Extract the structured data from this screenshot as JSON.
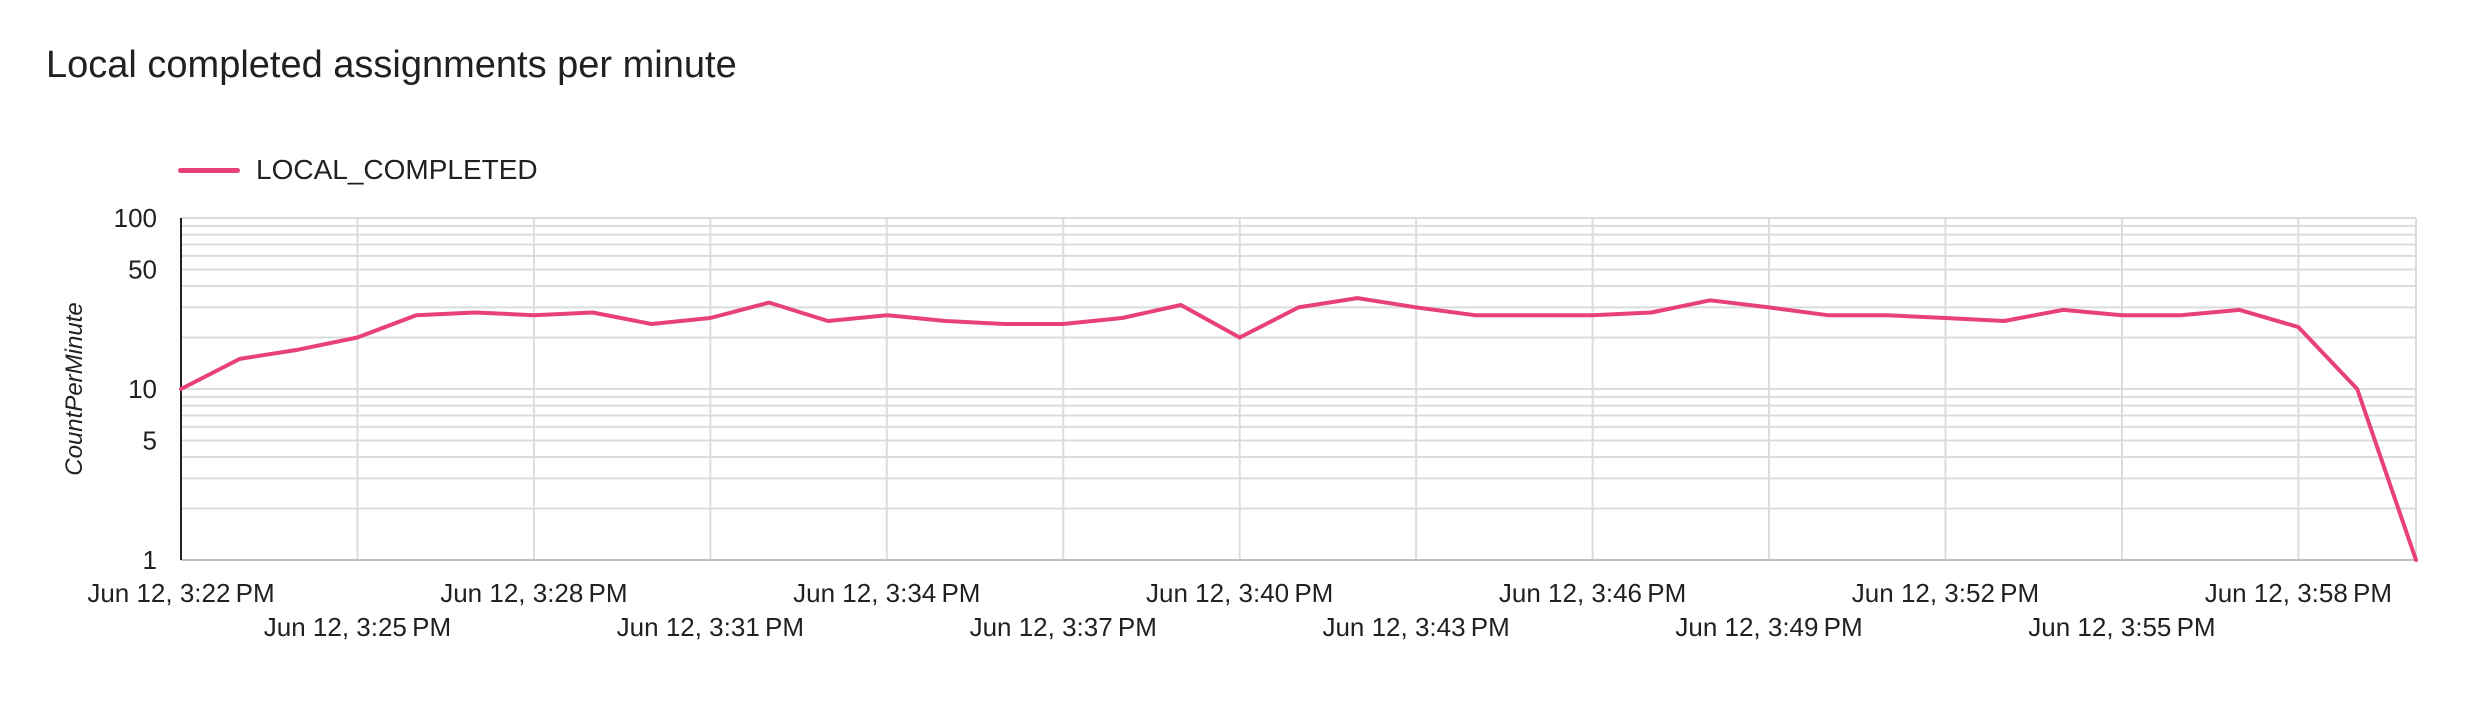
{
  "title": "Local completed assignments per minute",
  "chart_data": {
    "type": "line",
    "title": "Local completed assignments per minute",
    "ylabel": "CountPerMinute",
    "xlabel": "",
    "yscale": "log",
    "ylim": [
      1,
      100
    ],
    "grid": true,
    "legend_position": "top-left",
    "y_ticks": [
      1,
      5,
      10,
      50,
      100
    ],
    "x": [
      "3:22",
      "3:23",
      "3:24",
      "3:25",
      "3:26",
      "3:27",
      "3:28",
      "3:29",
      "3:30",
      "3:31",
      "3:32",
      "3:33",
      "3:34",
      "3:35",
      "3:36",
      "3:37",
      "3:38",
      "3:39",
      "3:40",
      "3:41",
      "3:42",
      "3:43",
      "3:44",
      "3:45",
      "3:46",
      "3:47",
      "3:48",
      "3:49",
      "3:50",
      "3:51",
      "3:52",
      "3:53",
      "3:54",
      "3:55",
      "3:56",
      "3:57",
      "3:58",
      "3:59",
      "4:00"
    ],
    "x_tick_labels": [
      {
        "index": 0,
        "text": "Jun 12, 3:22 PM",
        "row": 0
      },
      {
        "index": 3,
        "text": "Jun 12, 3:25 PM",
        "row": 1
      },
      {
        "index": 6,
        "text": "Jun 12, 3:28 PM",
        "row": 0
      },
      {
        "index": 9,
        "text": "Jun 12, 3:31 PM",
        "row": 1
      },
      {
        "index": 12,
        "text": "Jun 12, 3:34 PM",
        "row": 0
      },
      {
        "index": 15,
        "text": "Jun 12, 3:37 PM",
        "row": 1
      },
      {
        "index": 18,
        "text": "Jun 12, 3:40 PM",
        "row": 0
      },
      {
        "index": 21,
        "text": "Jun 12, 3:43 PM",
        "row": 1
      },
      {
        "index": 24,
        "text": "Jun 12, 3:46 PM",
        "row": 0
      },
      {
        "index": 27,
        "text": "Jun 12, 3:49 PM",
        "row": 1
      },
      {
        "index": 30,
        "text": "Jun 12, 3:52 PM",
        "row": 0
      },
      {
        "index": 33,
        "text": "Jun 12, 3:55 PM",
        "row": 1
      },
      {
        "index": 36,
        "text": "Jun 12, 3:58 PM",
        "row": 0
      }
    ],
    "series": [
      {
        "name": "LOCAL_COMPLETED",
        "color": "#e8417a",
        "values": [
          10,
          15,
          17,
          20,
          27,
          28,
          27,
          28,
          24,
          26,
          32,
          25,
          27,
          25,
          24,
          24,
          26,
          31,
          20,
          30,
          34,
          30,
          27,
          27,
          27,
          28,
          33,
          30,
          27,
          27,
          26,
          25,
          29,
          27,
          27,
          29,
          23,
          10,
          1
        ]
      }
    ]
  }
}
